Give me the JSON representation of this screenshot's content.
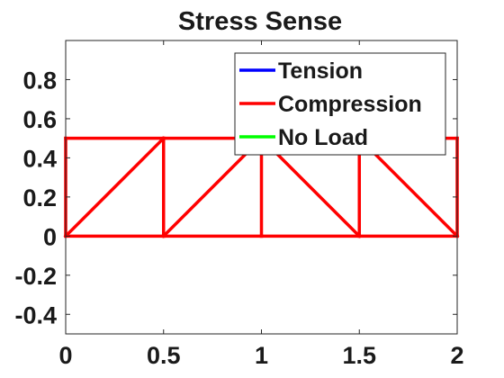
{
  "chart_data": {
    "type": "line",
    "title": "Stress Sense",
    "xlabel": "",
    "ylabel": "",
    "xlim": [
      0,
      2
    ],
    "ylim": [
      -0.5,
      1
    ],
    "x_ticks": [
      0,
      0.5,
      1,
      1.5,
      2
    ],
    "x_tick_labels": [
      "0",
      "0.5",
      "1",
      "1.5",
      "2"
    ],
    "y_ticks": [
      -0.4,
      -0.2,
      0,
      0.2,
      0.4,
      0.6,
      0.8
    ],
    "y_tick_labels": [
      "-0.4",
      "-0.2",
      "0",
      "0.2",
      "0.4",
      "0.6",
      "0.8"
    ],
    "grid": false,
    "legend_position": "top-right",
    "legend": [
      {
        "label": "Tension",
        "color": "#0000ff"
      },
      {
        "label": "Compression",
        "color": "#ff0000"
      },
      {
        "label": "No Load",
        "color": "#00ff00"
      }
    ],
    "series": [
      {
        "name": "member-bottom-1",
        "state": "Compression",
        "x": [
          0,
          0.5
        ],
        "y": [
          0,
          0
        ]
      },
      {
        "name": "member-bottom-2",
        "state": "Compression",
        "x": [
          0.5,
          1
        ],
        "y": [
          0,
          0
        ]
      },
      {
        "name": "member-bottom-3",
        "state": "Compression",
        "x": [
          1,
          1.5
        ],
        "y": [
          0,
          0
        ]
      },
      {
        "name": "member-bottom-4",
        "state": "Compression",
        "x": [
          1.5,
          2
        ],
        "y": [
          0,
          0
        ]
      },
      {
        "name": "member-top-1",
        "state": "Compression",
        "x": [
          0,
          0.5
        ],
        "y": [
          0.5,
          0.5
        ]
      },
      {
        "name": "member-top-2",
        "state": "Compression",
        "x": [
          0.5,
          1
        ],
        "y": [
          0.5,
          0.5
        ]
      },
      {
        "name": "member-top-3",
        "state": "Compression",
        "x": [
          1,
          1.5
        ],
        "y": [
          0.5,
          0.5
        ]
      },
      {
        "name": "member-top-4",
        "state": "Compression",
        "x": [
          1.5,
          2
        ],
        "y": [
          0.5,
          0.5
        ]
      },
      {
        "name": "member-vertical-0",
        "state": "Compression",
        "x": [
          0,
          0
        ],
        "y": [
          0,
          0.5
        ]
      },
      {
        "name": "member-vertical-1",
        "state": "Compression",
        "x": [
          0.5,
          0.5
        ],
        "y": [
          0,
          0.5
        ]
      },
      {
        "name": "member-vertical-2",
        "state": "Compression",
        "x": [
          1,
          1
        ],
        "y": [
          0,
          0.5
        ]
      },
      {
        "name": "member-vertical-3",
        "state": "Compression",
        "x": [
          1.5,
          1.5
        ],
        "y": [
          0,
          0.5
        ]
      },
      {
        "name": "member-vertical-4",
        "state": "Compression",
        "x": [
          2,
          2
        ],
        "y": [
          0,
          0.5
        ]
      },
      {
        "name": "member-diagonal-1",
        "state": "Compression",
        "x": [
          0,
          0.5
        ],
        "y": [
          0,
          0.5
        ]
      },
      {
        "name": "member-diagonal-2",
        "state": "Compression",
        "x": [
          0.5,
          1
        ],
        "y": [
          0,
          0.5
        ]
      },
      {
        "name": "member-diagonal-3",
        "state": "Compression",
        "x": [
          1,
          1.5
        ],
        "y": [
          0.5,
          0
        ]
      },
      {
        "name": "member-diagonal-4",
        "state": "Compression",
        "x": [
          1.5,
          2
        ],
        "y": [
          0.5,
          0
        ]
      }
    ]
  }
}
